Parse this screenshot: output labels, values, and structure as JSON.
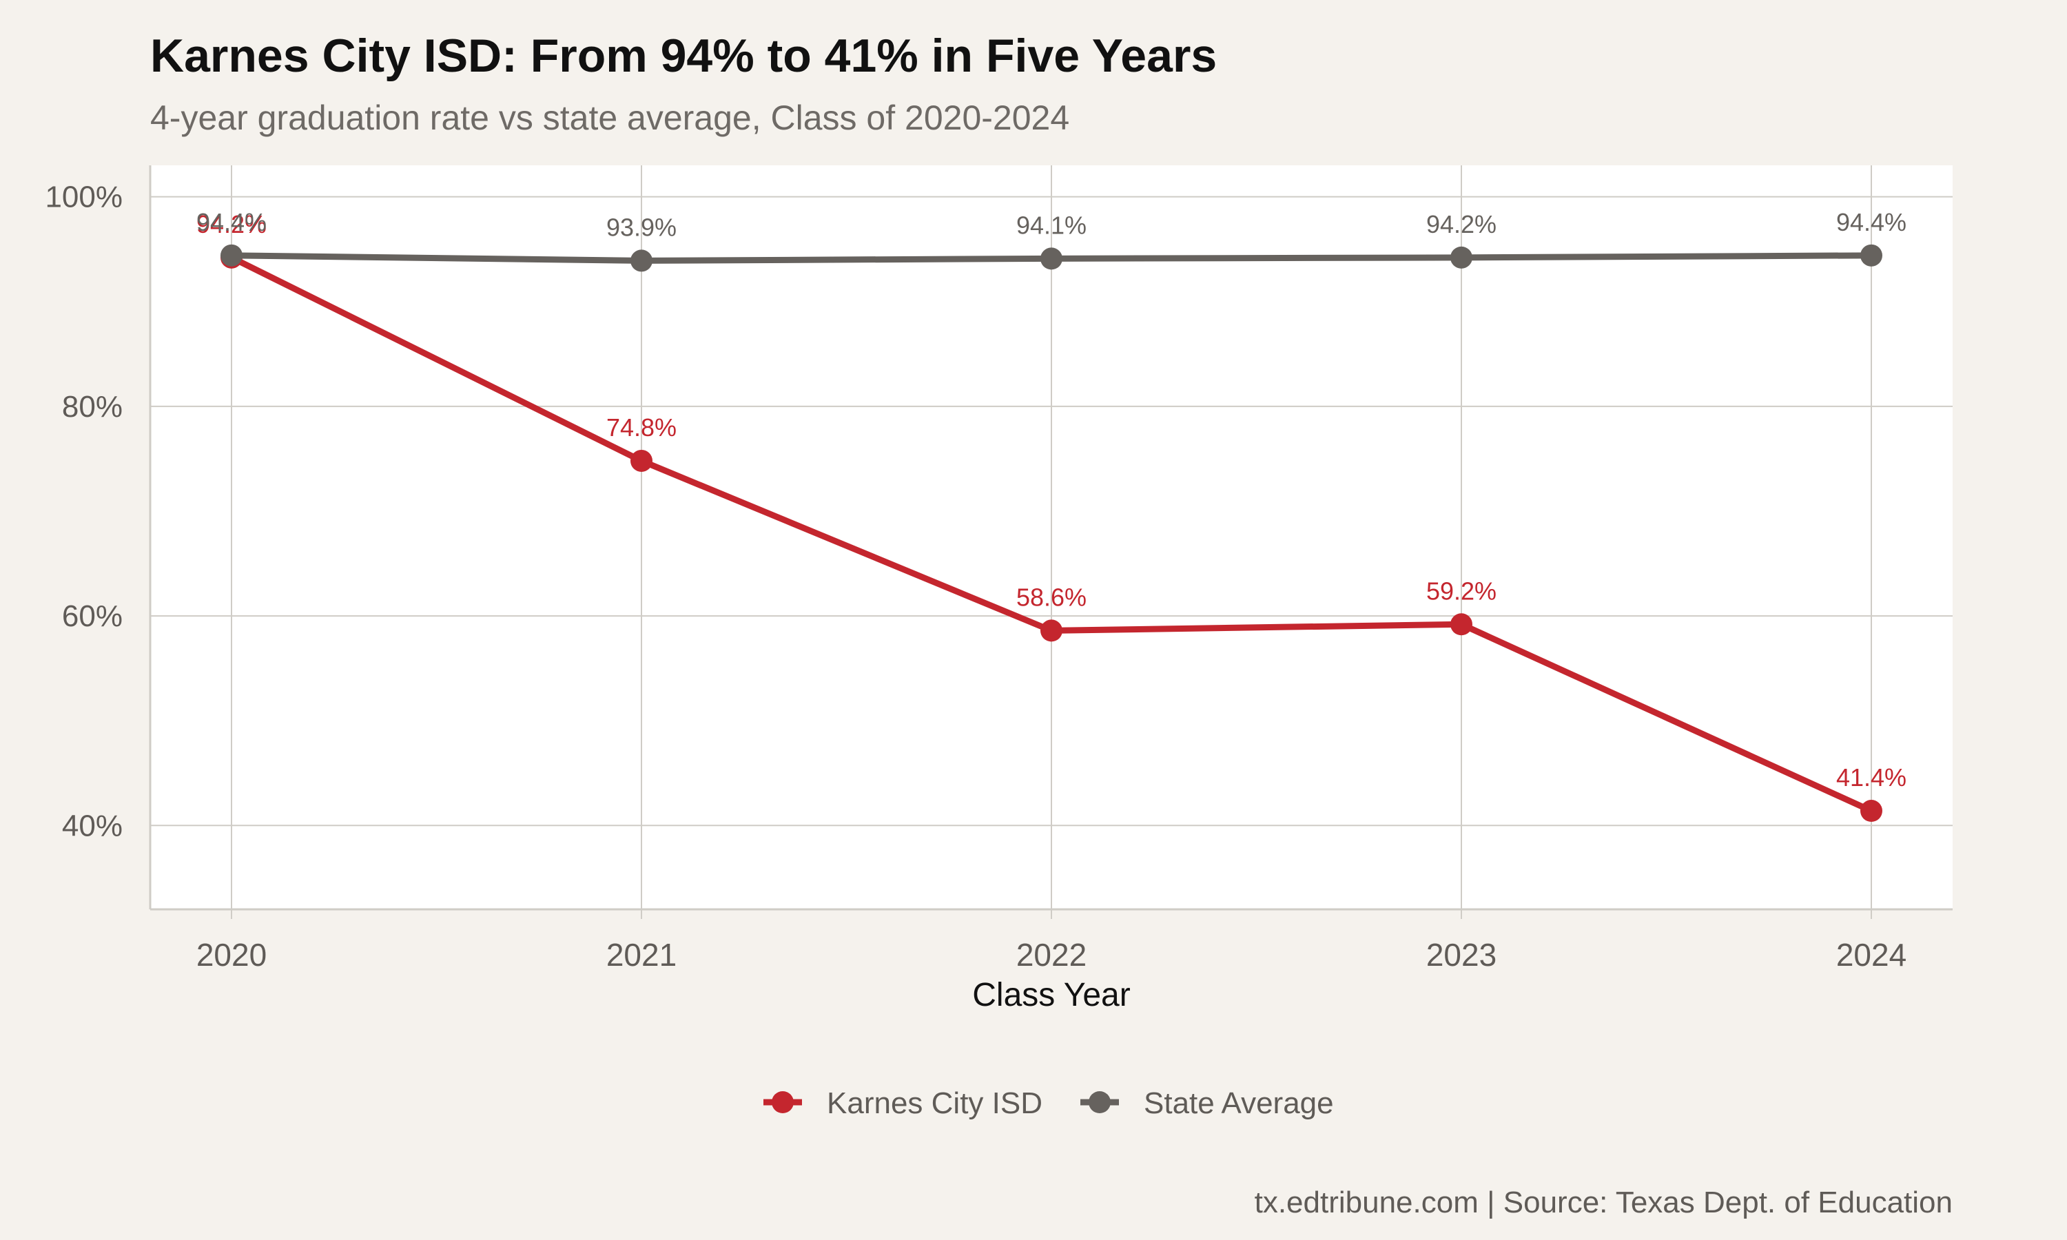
{
  "title": "Karnes City ISD: From 94% to 41% in Five Years",
  "subtitle": "4-year graduation rate vs state average, Class of 2020-2024",
  "caption": "tx.edtribune.com | Source: Texas Dept. of Education",
  "colors": {
    "background": "#f5f2ed",
    "panel": "#ffffff",
    "grid": "#cfccc6",
    "karnes": "#c4262e",
    "state": "#66625e",
    "title": "#111111",
    "subtitle": "#6e6a66",
    "axis_text": "#5f5b57"
  },
  "chart_data": {
    "type": "line",
    "title": "Karnes City ISD: From 94% to 41% in Five Years",
    "subtitle": "4-year graduation rate vs state average, Class of 2020-2024",
    "xlabel": "Class Year",
    "ylabel": "",
    "x": [
      2020,
      2021,
      2022,
      2023,
      2024
    ],
    "x_tick_labels": [
      "2020",
      "2021",
      "2022",
      "2023",
      "2024"
    ],
    "ylim": [
      32,
      103
    ],
    "y_ticks": [
      40,
      60,
      80,
      100
    ],
    "y_tick_labels": [
      "40%",
      "60%",
      "80%",
      "100%"
    ],
    "grid": true,
    "legend_position": "bottom",
    "series": [
      {
        "name": "Karnes City ISD",
        "color": "#c4262e",
        "values": [
          94.2,
          74.8,
          58.6,
          59.2,
          41.4
        ],
        "labels": [
          "94.2%",
          "74.8%",
          "58.6%",
          "59.2%",
          "41.4%"
        ]
      },
      {
        "name": "State Average",
        "color": "#66625e",
        "values": [
          94.4,
          93.9,
          94.1,
          94.2,
          94.4
        ],
        "labels": [
          "94.4%",
          "93.9%",
          "94.1%",
          "94.2%",
          "94.4%"
        ]
      }
    ]
  }
}
